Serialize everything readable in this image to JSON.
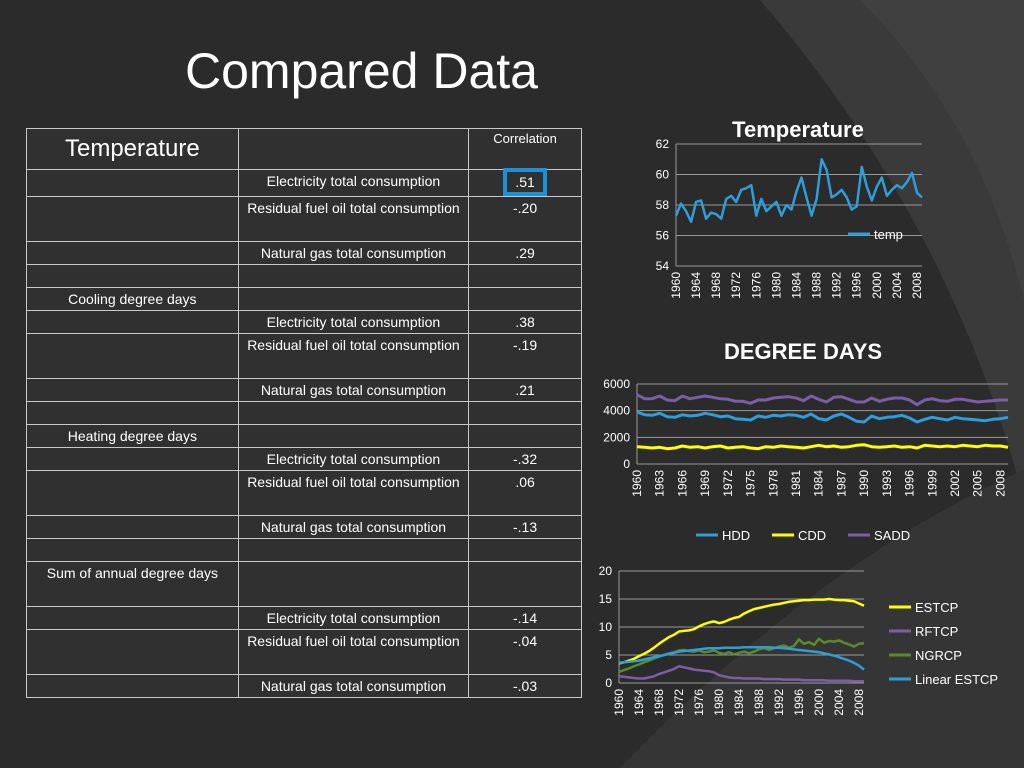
{
  "slide": {
    "title": "Compared Data"
  },
  "table": {
    "header": {
      "label": "Temperature",
      "correlation_header": "Correlation"
    },
    "rows": [
      {
        "group": "",
        "variable": "Electricity total consumption",
        "value": ".51",
        "highlight": true
      },
      {
        "group": "",
        "variable": "Residual fuel oil total consumption",
        "value": "-.20"
      },
      {
        "group": "",
        "variable": "Natural gas total consumption",
        "value": ".29"
      },
      {
        "group": "",
        "variable": "",
        "value": ""
      },
      {
        "group": "Cooling degree days",
        "variable": "",
        "value": ""
      },
      {
        "group": "",
        "variable": "Electricity total consumption",
        "value": ".38"
      },
      {
        "group": "",
        "variable": "Residual fuel oil total consumption",
        "value": "-.19"
      },
      {
        "group": "",
        "variable": "Natural gas total consumption",
        "value": ".21"
      },
      {
        "group": "",
        "variable": "",
        "value": ""
      },
      {
        "group": "Heating degree days",
        "variable": "",
        "value": ""
      },
      {
        "group": "",
        "variable": "Electricity total consumption",
        "value": "-.32"
      },
      {
        "group": "",
        "variable": "Residual fuel oil total consumption",
        "value": ".06"
      },
      {
        "group": "",
        "variable": "Natural gas total consumption",
        "value": "-.13"
      },
      {
        "group": "",
        "variable": "",
        "value": ""
      },
      {
        "group": "Sum of annual degree days",
        "variable": "",
        "value": ""
      },
      {
        "group": "",
        "variable": "Electricity total consumption",
        "value": "-.14"
      },
      {
        "group": "",
        "variable": "Residual fuel oil total consumption",
        "value": "-.04"
      },
      {
        "group": "",
        "variable": "Natural gas total consumption",
        "value": "-.03"
      }
    ]
  },
  "colors": {
    "highlight": "#1e90d6",
    "background": "#2b2b2b"
  },
  "chart_data": [
    {
      "type": "line",
      "title": "Temperature",
      "ylim": [
        54,
        62
      ],
      "yticks": [
        54,
        56,
        58,
        60,
        62
      ],
      "x_tick_labels": [
        "1960",
        "1964",
        "1968",
        "1972",
        "1976",
        "1980",
        "1984",
        "1988",
        "1992",
        "1996",
        "2000",
        "2004",
        "2008"
      ],
      "x": [
        1960,
        1961,
        1962,
        1963,
        1964,
        1965,
        1966,
        1967,
        1968,
        1969,
        1970,
        1971,
        1972,
        1973,
        1974,
        1975,
        1976,
        1977,
        1978,
        1979,
        1980,
        1981,
        1982,
        1983,
        1984,
        1985,
        1986,
        1987,
        1988,
        1989,
        1990,
        1991,
        1992,
        1993,
        1994,
        1995,
        1996,
        1997,
        1998,
        1999,
        2000,
        2001,
        2002,
        2003,
        2004,
        2005,
        2006,
        2007,
        2008,
        2009
      ],
      "series": [
        {
          "name": "temp",
          "color": "#2f9ed8",
          "values": [
            57.3,
            58.1,
            57.6,
            56.9,
            58.2,
            58.3,
            57.1,
            57.5,
            57.4,
            57.1,
            58.4,
            58.6,
            58.2,
            59.0,
            59.1,
            59.3,
            57.3,
            58.4,
            57.6,
            57.9,
            58.2,
            57.3,
            58.0,
            57.7,
            58.9,
            59.8,
            58.5,
            57.3,
            58.4,
            61.0,
            60.3,
            58.5,
            58.7,
            59.0,
            58.5,
            57.7,
            57.9,
            60.5,
            59.2,
            58.3,
            59.2,
            59.8,
            58.6,
            59.0,
            59.3,
            59.1,
            59.5,
            60.1,
            58.8,
            58.5
          ]
        }
      ],
      "legend": "right"
    },
    {
      "type": "line",
      "title": "DEGREE DAYS",
      "ylim": [
        0,
        6000
      ],
      "yticks": [
        0,
        2000,
        4000,
        6000
      ],
      "x_tick_labels": [
        "1960",
        "1963",
        "1966",
        "1969",
        "1972",
        "1975",
        "1978",
        "1981",
        "1984",
        "1987",
        "1990",
        "1993",
        "1996",
        "1999",
        "2002",
        "2005",
        "2008"
      ],
      "x": [
        1960,
        1961,
        1962,
        1963,
        1964,
        1965,
        1966,
        1967,
        1968,
        1969,
        1970,
        1971,
        1972,
        1973,
        1974,
        1975,
        1976,
        1977,
        1978,
        1979,
        1980,
        1981,
        1982,
        1983,
        1984,
        1985,
        1986,
        1987,
        1988,
        1989,
        1990,
        1991,
        1992,
        1993,
        1994,
        1995,
        1996,
        1997,
        1998,
        1999,
        2000,
        2001,
        2002,
        2003,
        2004,
        2005,
        2006,
        2007,
        2008,
        2009
      ],
      "series": [
        {
          "name": "HDD",
          "color": "#2f9ed8",
          "values": [
            3900,
            3700,
            3650,
            3800,
            3550,
            3500,
            3700,
            3600,
            3650,
            3800,
            3700,
            3550,
            3600,
            3400,
            3350,
            3300,
            3600,
            3500,
            3650,
            3600,
            3700,
            3650,
            3500,
            3750,
            3400,
            3300,
            3600,
            3750,
            3500,
            3200,
            3150,
            3600,
            3400,
            3500,
            3550,
            3650,
            3450,
            3150,
            3350,
            3500,
            3400,
            3300,
            3500,
            3400,
            3350,
            3300,
            3250,
            3350,
            3400,
            3500
          ]
        },
        {
          "name": "CDD",
          "color": "#ffff00",
          "values": [
            1300,
            1250,
            1200,
            1250,
            1150,
            1200,
            1350,
            1250,
            1300,
            1200,
            1300,
            1350,
            1200,
            1250,
            1300,
            1200,
            1150,
            1300,
            1250,
            1350,
            1300,
            1250,
            1200,
            1300,
            1400,
            1300,
            1350,
            1250,
            1300,
            1400,
            1450,
            1300,
            1250,
            1300,
            1350,
            1250,
            1300,
            1200,
            1400,
            1350,
            1300,
            1350,
            1300,
            1400,
            1350,
            1300,
            1400,
            1350,
            1350,
            1250
          ]
        },
        {
          "name": "SADD",
          "color": "#7b5ea8",
          "values": [
            5200,
            4900,
            4900,
            5100,
            4800,
            4750,
            5100,
            4900,
            5000,
            5100,
            5000,
            4900,
            4850,
            4700,
            4700,
            4550,
            4800,
            4800,
            4950,
            5000,
            5050,
            4950,
            4750,
            5100,
            4850,
            4650,
            5000,
            5050,
            4850,
            4650,
            4650,
            4950,
            4700,
            4850,
            4950,
            4950,
            4800,
            4450,
            4800,
            4900,
            4750,
            4700,
            4850,
            4850,
            4750,
            4650,
            4700,
            4750,
            4800,
            4800
          ]
        }
      ],
      "legend": "bottom"
    },
    {
      "type": "line",
      "title": "",
      "ylim": [
        0,
        20
      ],
      "yticks": [
        0,
        5,
        10,
        15,
        20
      ],
      "x_tick_labels": [
        "1960",
        "1964",
        "1968",
        "1972",
        "1976",
        "1980",
        "1984",
        "1988",
        "1992",
        "1996",
        "2000",
        "2004",
        "2008"
      ],
      "x": [
        1960,
        1961,
        1962,
        1963,
        1964,
        1965,
        1966,
        1967,
        1968,
        1969,
        1970,
        1971,
        1972,
        1973,
        1974,
        1975,
        1976,
        1977,
        1978,
        1979,
        1980,
        1981,
        1982,
        1983,
        1984,
        1985,
        1986,
        1987,
        1988,
        1989,
        1990,
        1991,
        1992,
        1993,
        1994,
        1995,
        1996,
        1997,
        1998,
        1999,
        2000,
        2001,
        2002,
        2003,
        2004,
        2005,
        2006,
        2007,
        2008,
        2009
      ],
      "series": [
        {
          "name": "ESTCP",
          "color": "#ffff00",
          "values": [
            3.5,
            3.7,
            4.0,
            4.3,
            4.8,
            5.2,
            5.7,
            6.3,
            7.0,
            7.6,
            8.2,
            8.6,
            9.2,
            9.3,
            9.4,
            9.6,
            10.1,
            10.5,
            10.8,
            11.0,
            10.7,
            10.9,
            11.3,
            11.6,
            11.8,
            12.4,
            12.8,
            13.2,
            13.4,
            13.6,
            13.8,
            14.0,
            14.1,
            14.3,
            14.5,
            14.6,
            14.7,
            14.8,
            14.8,
            14.9,
            14.9,
            14.9,
            15.0,
            14.9,
            14.8,
            14.8,
            14.7,
            14.6,
            14.2,
            13.8
          ]
        },
        {
          "name": "RFTCP",
          "color": "#7b5ea8",
          "values": [
            1.2,
            1.1,
            1.0,
            0.9,
            0.8,
            0.8,
            1.0,
            1.2,
            1.6,
            1.9,
            2.2,
            2.5,
            3.0,
            2.8,
            2.6,
            2.4,
            2.3,
            2.2,
            2.1,
            1.9,
            1.4,
            1.2,
            1.0,
            0.9,
            0.9,
            0.8,
            0.8,
            0.8,
            0.8,
            0.7,
            0.7,
            0.7,
            0.7,
            0.6,
            0.6,
            0.6,
            0.6,
            0.5,
            0.5,
            0.5,
            0.5,
            0.5,
            0.4,
            0.4,
            0.4,
            0.4,
            0.4,
            0.3,
            0.3,
            0.3
          ]
        },
        {
          "name": "NGRCP",
          "color": "#5a8a2a",
          "values": [
            2.0,
            2.3,
            2.6,
            3.0,
            3.3,
            3.7,
            4.0,
            4.4,
            4.7,
            5.0,
            5.3,
            5.5,
            5.8,
            5.9,
            5.7,
            5.6,
            5.8,
            5.5,
            5.6,
            5.8,
            5.4,
            5.2,
            5.5,
            5.1,
            5.4,
            5.6,
            5.3,
            5.6,
            6.0,
            6.3,
            5.9,
            6.2,
            6.5,
            6.7,
            6.3,
            6.6,
            7.8,
            7.0,
            7.3,
            6.8,
            7.9,
            7.2,
            7.5,
            7.4,
            7.6,
            7.2,
            6.9,
            6.5,
            7.0,
            7.1
          ]
        },
        {
          "name": "Linear ESTCP",
          "color": "#2f9ed8",
          "values": [
            3.6,
            3.7,
            3.8,
            3.9,
            4.0,
            4.2,
            4.4,
            4.6,
            4.8,
            5.0,
            5.2,
            5.4,
            5.6,
            5.7,
            5.8,
            5.9,
            6.0,
            6.1,
            6.2,
            6.2,
            6.2,
            6.3,
            6.3,
            6.3,
            6.3,
            6.4,
            6.4,
            6.4,
            6.4,
            6.4,
            6.4,
            6.3,
            6.3,
            6.2,
            6.1,
            6.0,
            5.9,
            5.8,
            5.7,
            5.6,
            5.5,
            5.3,
            5.1,
            4.9,
            4.6,
            4.3,
            4.0,
            3.6,
            3.1,
            2.4
          ]
        }
      ],
      "legend": "right"
    }
  ]
}
